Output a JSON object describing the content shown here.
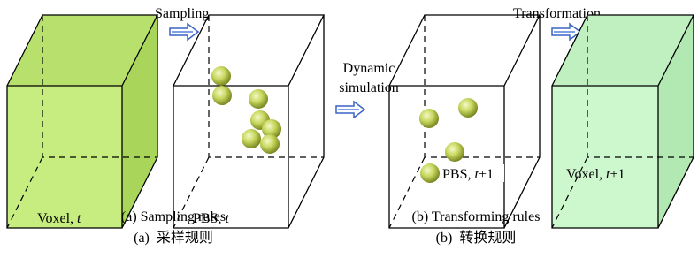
{
  "labels": {
    "sampling": "Sampling",
    "transformation": "Transformation",
    "dynamic": "Dynamic",
    "simulation": "simulation"
  },
  "cubes": [
    {
      "prefix": "Voxel, ",
      "var": "t"
    },
    {
      "prefix": "PBS, ",
      "var": "t"
    },
    {
      "prefix": "PBS, ",
      "var": "t",
      "suffix": "+1"
    },
    {
      "prefix": "Voxel, ",
      "var": "t",
      "suffix": "+1"
    }
  ],
  "captions": {
    "a_en": "(a) Sampling rules",
    "a_zh": "(a)  采样规则",
    "b_en": "(b) Transforming rules",
    "b_zh": "(b)  转换规则"
  }
}
